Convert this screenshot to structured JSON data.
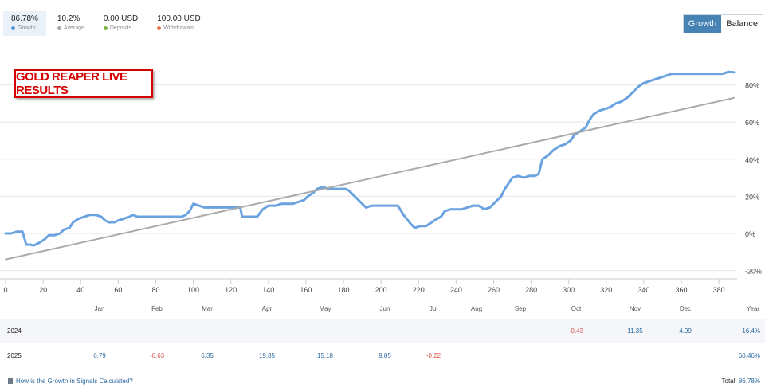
{
  "stats": [
    {
      "value": "86.78%",
      "label": "Growth",
      "color": "#5b9bd5",
      "active": true
    },
    {
      "value": "10.2%",
      "label": "Average",
      "color": "#a7a9ac",
      "active": false
    },
    {
      "value": "0.00 USD",
      "label": "Deposits",
      "color": "#7cb342",
      "active": false
    },
    {
      "value": "100.00 USD",
      "label": "Withdrawals",
      "color": "#e8764a",
      "active": false
    }
  ],
  "toggle": {
    "growth": "Growth",
    "balance": "Balance"
  },
  "banner": "GOLD REAPER LIVE RESULTS",
  "chart_data": {
    "type": "line",
    "x_ticks": [
      "0",
      "20",
      "40",
      "60",
      "80",
      "100",
      "120",
      "140",
      "160",
      "180",
      "200",
      "220",
      "240",
      "260",
      "280",
      "300",
      "320",
      "340",
      "360",
      "380"
    ],
    "y_ticks": [
      "80%",
      "60%",
      "40%",
      "20%",
      "0%",
      "-20%"
    ],
    "ylim": [
      -20,
      90
    ],
    "xlim": [
      0,
      388
    ],
    "months": [
      "Jan",
      "Feb",
      "Mar",
      "Apr",
      "May",
      "Jun",
      "Jul",
      "Aug",
      "Sep",
      "Oct",
      "Nov",
      "Dec",
      "Year"
    ],
    "series": [
      {
        "color": "#6aa3e0",
        "points": [
          [
            0,
            0
          ],
          [
            3,
            0
          ],
          [
            6,
            1
          ],
          [
            9,
            1
          ],
          [
            11,
            -6
          ],
          [
            13,
            -6
          ],
          [
            15,
            -6.5
          ],
          [
            18,
            -5
          ],
          [
            21,
            -3
          ],
          [
            23,
            -1
          ],
          [
            26,
            -1
          ],
          [
            29,
            0
          ],
          [
            31,
            2
          ],
          [
            34,
            3
          ],
          [
            36,
            6
          ],
          [
            39,
            8
          ],
          [
            42,
            9
          ],
          [
            45,
            10
          ],
          [
            48,
            10
          ],
          [
            51,
            9
          ],
          [
            53,
            7
          ],
          [
            55,
            6
          ],
          [
            58,
            6
          ],
          [
            60,
            7
          ],
          [
            63,
            8
          ],
          [
            66,
            9
          ],
          [
            68,
            10
          ],
          [
            70,
            9
          ],
          [
            73,
            9
          ],
          [
            76,
            9
          ],
          [
            79,
            9
          ],
          [
            82,
            9
          ],
          [
            85,
            9
          ],
          [
            88,
            9
          ],
          [
            91,
            9
          ],
          [
            94,
            9
          ],
          [
            96,
            10
          ],
          [
            98,
            12
          ],
          [
            100,
            16
          ],
          [
            103,
            15
          ],
          [
            106,
            14
          ],
          [
            110,
            14
          ],
          [
            114,
            14
          ],
          [
            118,
            14
          ],
          [
            122,
            14
          ],
          [
            125,
            14
          ],
          [
            126,
            9
          ],
          [
            130,
            9
          ],
          [
            134,
            9
          ],
          [
            137,
            13
          ],
          [
            140,
            15
          ],
          [
            144,
            15
          ],
          [
            147,
            16
          ],
          [
            150,
            16
          ],
          [
            153,
            16
          ],
          [
            156,
            17
          ],
          [
            159,
            18
          ],
          [
            161,
            20
          ],
          [
            164,
            22
          ],
          [
            166,
            24
          ],
          [
            169,
            25
          ],
          [
            172,
            24
          ],
          [
            175,
            24
          ],
          [
            178,
            24
          ],
          [
            181,
            24
          ],
          [
            183,
            23
          ],
          [
            186,
            20
          ],
          [
            189,
            17
          ],
          [
            192,
            14
          ],
          [
            195,
            15
          ],
          [
            198,
            15
          ],
          [
            201,
            15
          ],
          [
            205,
            15
          ],
          [
            209,
            15
          ],
          [
            212,
            10
          ],
          [
            216,
            5
          ],
          [
            218,
            3
          ],
          [
            221,
            4
          ],
          [
            224,
            4
          ],
          [
            227,
            6
          ],
          [
            230,
            8
          ],
          [
            232,
            9
          ],
          [
            234,
            12
          ],
          [
            237,
            13
          ],
          [
            240,
            13
          ],
          [
            243,
            13
          ],
          [
            246,
            14
          ],
          [
            249,
            15
          ],
          [
            252,
            15
          ],
          [
            255,
            13
          ],
          [
            258,
            14
          ],
          [
            261,
            17
          ],
          [
            264,
            20
          ],
          [
            266,
            24
          ],
          [
            268,
            27
          ],
          [
            270,
            30
          ],
          [
            273,
            31
          ],
          [
            276,
            30
          ],
          [
            279,
            31
          ],
          [
            282,
            31
          ],
          [
            284,
            32
          ],
          [
            286,
            40
          ],
          [
            289,
            42
          ],
          [
            292,
            45
          ],
          [
            295,
            47
          ],
          [
            298,
            48
          ],
          [
            301,
            50
          ],
          [
            303,
            53
          ],
          [
            306,
            55
          ],
          [
            309,
            57
          ],
          [
            311,
            61
          ],
          [
            313,
            64
          ],
          [
            316,
            66
          ],
          [
            319,
            67
          ],
          [
            322,
            68
          ],
          [
            325,
            70
          ],
          [
            328,
            71
          ],
          [
            331,
            73
          ],
          [
            334,
            76
          ],
          [
            337,
            79
          ],
          [
            340,
            81
          ],
          [
            343,
            82
          ],
          [
            346,
            83
          ],
          [
            349,
            84
          ],
          [
            352,
            85
          ],
          [
            355,
            86
          ],
          [
            358,
            86
          ],
          [
            361,
            86
          ],
          [
            364,
            86
          ],
          [
            367,
            86
          ],
          [
            370,
            86
          ],
          [
            373,
            86
          ],
          [
            376,
            86
          ],
          [
            379,
            86
          ],
          [
            382,
            86
          ],
          [
            385,
            87
          ],
          [
            388,
            86.78
          ]
        ]
      },
      {
        "color": "#aaaaaa",
        "points": [
          [
            0,
            -14
          ],
          [
            388,
            73
          ]
        ]
      }
    ]
  },
  "table": {
    "rows": [
      {
        "year": "2024",
        "cells": [
          {
            "month": "Oct",
            "value": "-0.43",
            "neg": true
          },
          {
            "month": "Nov",
            "value": "11.35",
            "neg": false
          },
          {
            "month": "Dec",
            "value": "4.99",
            "neg": false
          }
        ],
        "total": "16.4%"
      },
      {
        "year": "2025",
        "cells": [
          {
            "month": "Jan",
            "value": "6.79",
            "neg": false
          },
          {
            "month": "Feb",
            "value": "-6.63",
            "neg": true
          },
          {
            "month": "Mar",
            "value": "6.35",
            "neg": false
          },
          {
            "month": "Apr",
            "value": "19.85",
            "neg": false
          },
          {
            "month": "May",
            "value": "15.18",
            "neg": false
          },
          {
            "month": "Jun",
            "value": "9.85",
            "neg": false
          },
          {
            "month": "Jul",
            "value": "-0.22",
            "neg": true
          }
        ],
        "total": "60.46%"
      }
    ]
  },
  "footer": {
    "link": "How is the Growth in Signals Calculated?",
    "total_label": "Total:",
    "total_value": "86.78%"
  }
}
